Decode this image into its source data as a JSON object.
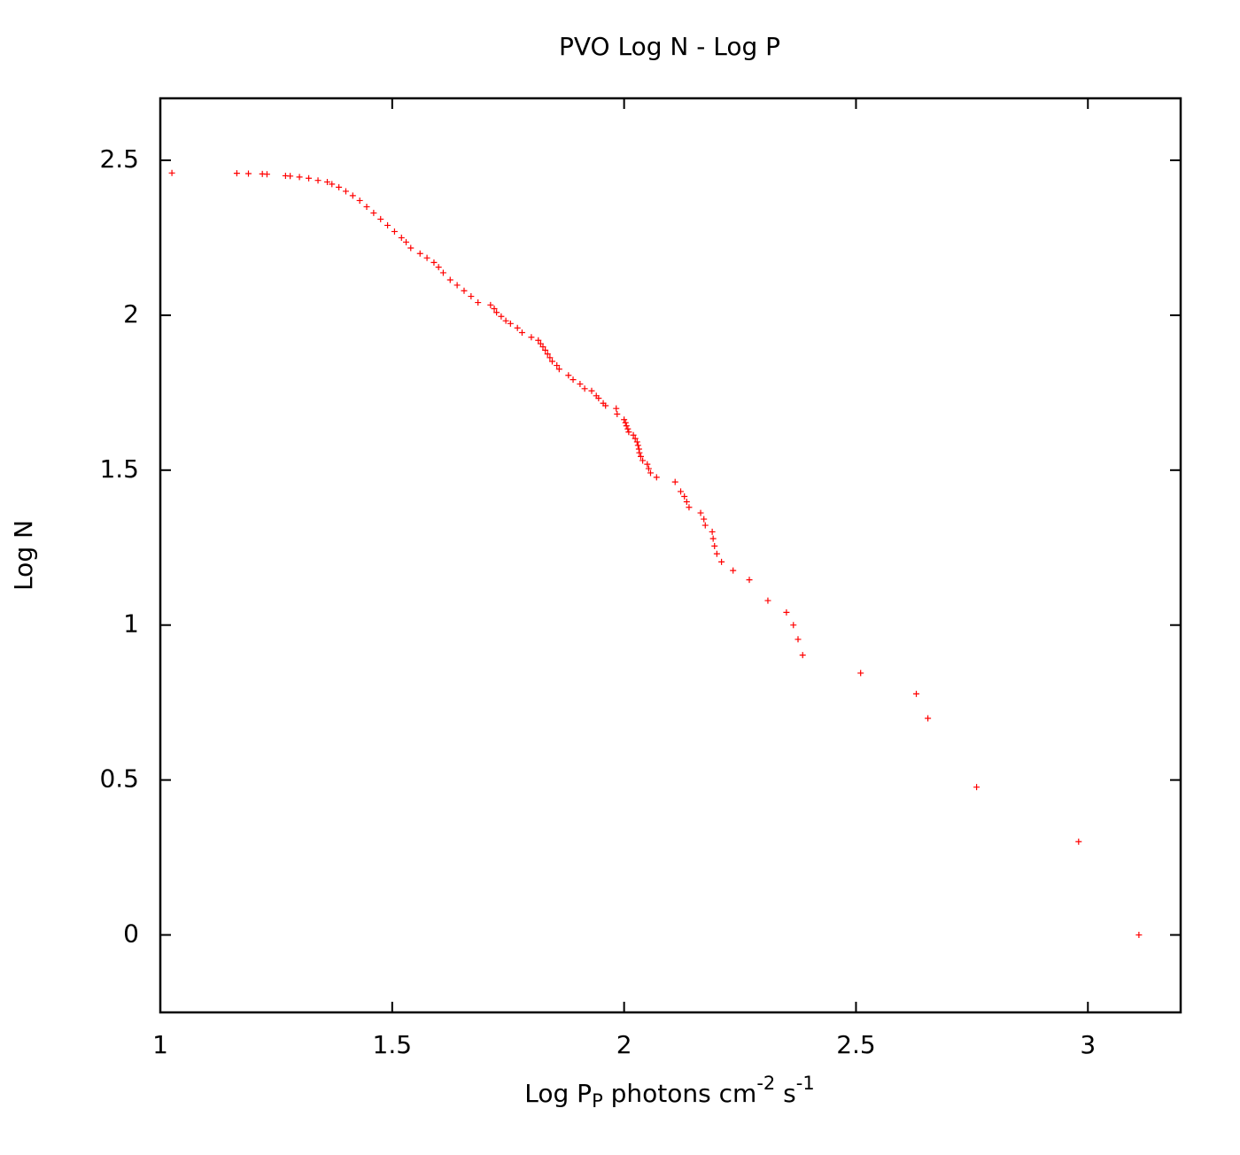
{
  "chart_data": {
    "type": "scatter",
    "title": "PVO Log N - Log P",
    "xlabel_parts": [
      "Log P",
      "P",
      " photons cm",
      "-2",
      " s",
      "-1"
    ],
    "ylabel": "Log  N",
    "xlim": [
      1,
      3.2
    ],
    "ylim": [
      -0.25,
      2.7
    ],
    "xticks": [
      1,
      1.5,
      2,
      2.5,
      3
    ],
    "yticks": [
      0,
      0.5,
      1,
      1.5,
      2,
      2.5
    ],
    "grid": false,
    "series": [
      {
        "color": "#ff0000",
        "x": [
          3.11,
          2.98,
          2.76,
          2.655,
          2.63,
          2.51,
          2.385,
          2.375,
          2.365,
          2.35,
          2.31,
          2.27,
          2.235,
          2.21,
          2.2,
          2.195,
          2.192,
          2.19,
          2.175,
          2.172,
          2.165,
          2.14,
          2.135,
          2.13,
          2.122,
          2.11,
          2.07,
          2.057,
          2.053,
          2.05,
          2.04,
          2.036,
          2.033,
          2.032,
          2.03,
          2.028,
          2.024,
          2.02,
          2.01,
          2.008,
          2.005,
          2.003,
          2.0,
          1.985,
          1.983,
          1.96,
          1.955,
          1.945,
          1.94,
          1.93,
          1.915,
          1.905,
          1.89,
          1.88,
          1.86,
          1.855,
          1.845,
          1.84,
          1.835,
          1.83,
          1.825,
          1.82,
          1.815,
          1.8,
          1.78,
          1.77,
          1.755,
          1.745,
          1.735,
          1.725,
          1.72,
          1.712,
          1.685,
          1.67,
          1.655,
          1.64,
          1.625,
          1.61,
          1.6,
          1.59,
          1.575,
          1.56,
          1.54,
          1.53,
          1.52,
          1.505,
          1.49,
          1.475,
          1.46,
          1.445,
          1.43,
          1.415,
          1.4,
          1.385,
          1.37,
          1.36,
          1.34,
          1.32,
          1.3,
          1.28,
          1.27,
          1.23,
          1.22,
          1.19,
          1.165,
          1.025
        ],
        "values": [
          0,
          0.301,
          0.477,
          0.699,
          0.778,
          0.845,
          0.903,
          0.954,
          1.0,
          1.041,
          1.079,
          1.146,
          1.176,
          1.204,
          1.23,
          1.255,
          1.279,
          1.301,
          1.322,
          1.342,
          1.362,
          1.38,
          1.398,
          1.415,
          1.431,
          1.462,
          1.477,
          1.491,
          1.505,
          1.519,
          1.531,
          1.544,
          1.556,
          1.568,
          1.58,
          1.591,
          1.602,
          1.613,
          1.623,
          1.633,
          1.643,
          1.653,
          1.663,
          1.681,
          1.699,
          1.708,
          1.716,
          1.732,
          1.74,
          1.756,
          1.763,
          1.778,
          1.792,
          1.806,
          1.826,
          1.838,
          1.851,
          1.863,
          1.875,
          1.887,
          1.898,
          1.908,
          1.919,
          1.929,
          1.944,
          1.959,
          1.973,
          1.982,
          1.996,
          2.009,
          2.021,
          2.033,
          2.041,
          2.061,
          2.079,
          2.097,
          2.114,
          2.137,
          2.155,
          2.17,
          2.185,
          2.199,
          2.217,
          2.236,
          2.25,
          2.27,
          2.29,
          2.31,
          2.33,
          2.35,
          2.37,
          2.386,
          2.4,
          2.413,
          2.423,
          2.43,
          2.435,
          2.442,
          2.446,
          2.449,
          2.45,
          2.455,
          2.456,
          2.457,
          2.458,
          2.459
        ]
      }
    ]
  }
}
